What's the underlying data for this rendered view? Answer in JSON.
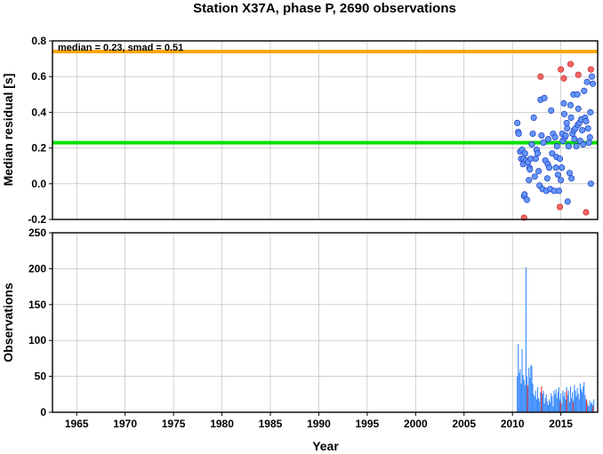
{
  "chart_data": [
    {
      "type": "scatter",
      "title": "Station X37A, phase P, 2690 observations",
      "xlabel": "",
      "ylabel": "Median residual [s]",
      "xlim": [
        1962.5,
        2018.8
      ],
      "ylim": [
        -0.2,
        0.8
      ],
      "xticks": [
        "1965",
        "1970",
        "1975",
        "1980",
        "1985",
        "1990",
        "1995",
        "2000",
        "2005",
        "2010",
        "2015"
      ],
      "yticks": [
        "-0.2",
        "0.0",
        "0.2",
        "0.4",
        "0.6",
        "0.8"
      ],
      "grid": true,
      "annotation": "median = 0.23, smad = 0.51",
      "reference_lines": [
        {
          "y": 0.23,
          "color": "#00e000"
        },
        {
          "y": 0.74,
          "color": "#ffa500"
        }
      ],
      "colors": {
        "normal": "#6496ff",
        "outlier": "#ff6464",
        "edge": "#1e3cb4",
        "outlier_edge": "#b42828"
      },
      "points": [
        [
          2010.5,
          0.34
        ],
        [
          2010.6,
          0.29
        ],
        [
          2010.65,
          0.28
        ],
        [
          2010.8,
          0.18
        ],
        [
          2010.9,
          0.14
        ],
        [
          2011.0,
          0.19
        ],
        [
          2011.1,
          0.11
        ],
        [
          2011.15,
          0.14
        ],
        [
          2011.2,
          -0.07
        ],
        [
          2011.25,
          -0.06
        ],
        [
          2011.3,
          0.17
        ],
        [
          2011.4,
          0.13
        ],
        [
          2011.5,
          -0.09
        ],
        [
          2011.6,
          0.12
        ],
        [
          2011.7,
          0.02
        ],
        [
          2011.75,
          0.09
        ],
        [
          2011.8,
          0.08
        ],
        [
          2011.9,
          0.14
        ],
        [
          2012.0,
          0.22
        ],
        [
          2012.1,
          0.28
        ],
        [
          2012.2,
          0.37
        ],
        [
          2012.3,
          0.04
        ],
        [
          2012.4,
          0.14
        ],
        [
          2012.5,
          0.19
        ],
        [
          2012.6,
          0.17
        ],
        [
          2012.7,
          0.07
        ],
        [
          2012.8,
          -0.01
        ],
        [
          2012.9,
          0.47
        ],
        [
          2013.0,
          0.27
        ],
        [
          2013.1,
          -0.03
        ],
        [
          2013.2,
          0.23
        ],
        [
          2013.3,
          0.48
        ],
        [
          2013.4,
          0.13
        ],
        [
          2013.5,
          -0.04
        ],
        [
          2013.6,
          0.03
        ],
        [
          2013.65,
          0.11
        ],
        [
          2013.7,
          0.25
        ],
        [
          2013.8,
          0.09
        ],
        [
          2013.9,
          -0.03
        ],
        [
          2014.0,
          0.41
        ],
        [
          2014.1,
          0.17
        ],
        [
          2014.2,
          0.28
        ],
        [
          2014.3,
          -0.04
        ],
        [
          2014.4,
          0.26
        ],
        [
          2014.5,
          0.09
        ],
        [
          2014.55,
          0.15
        ],
        [
          2014.6,
          0.21
        ],
        [
          2014.7,
          0.05
        ],
        [
          2014.8,
          -0.04
        ],
        [
          2014.9,
          0.14
        ],
        [
          2015.0,
          0.02
        ],
        [
          2015.1,
          0.09
        ],
        [
          2015.15,
          0.28
        ],
        [
          2015.2,
          0.24
        ],
        [
          2015.3,
          0.45
        ],
        [
          2015.35,
          0.39
        ],
        [
          2015.4,
          0.26
        ],
        [
          2015.5,
          0.27
        ],
        [
          2015.6,
          0.34
        ],
        [
          2015.65,
          0.31
        ],
        [
          2015.7,
          -0.1
        ],
        [
          2015.8,
          0.21
        ],
        [
          2015.9,
          0.06
        ],
        [
          2016.0,
          0.44
        ],
        [
          2016.05,
          0.37
        ],
        [
          2016.1,
          0.03
        ],
        [
          2016.2,
          0.28
        ],
        [
          2016.3,
          0.5
        ],
        [
          2016.35,
          0.3
        ],
        [
          2016.4,
          0.25
        ],
        [
          2016.5,
          0.31
        ],
        [
          2016.6,
          0.21
        ],
        [
          2016.7,
          0.5
        ],
        [
          2016.75,
          0.33
        ],
        [
          2016.8,
          0.42
        ],
        [
          2016.9,
          0.34
        ],
        [
          2017.0,
          0.24
        ],
        [
          2017.1,
          0.36
        ],
        [
          2017.2,
          0.3
        ],
        [
          2017.3,
          0.22
        ],
        [
          2017.4,
          0.52
        ],
        [
          2017.5,
          0.37
        ],
        [
          2017.6,
          0.35
        ],
        [
          2017.7,
          0.57
        ],
        [
          2017.8,
          0.31
        ],
        [
          2017.9,
          0.23
        ],
        [
          2018.0,
          0.26
        ],
        [
          2018.05,
          0.4
        ],
        [
          2018.1,
          0.0
        ],
        [
          2018.2,
          0.6
        ],
        [
          2018.3,
          0.56
        ]
      ],
      "outliers": [
        [
          2011.2,
          -0.19
        ],
        [
          2012.9,
          0.6
        ],
        [
          2014.9,
          -0.13
        ],
        [
          2015.0,
          0.64
        ],
        [
          2015.3,
          0.59
        ],
        [
          2016.0,
          0.67
        ],
        [
          2016.8,
          0.61
        ],
        [
          2017.6,
          -0.16
        ],
        [
          2018.1,
          0.64
        ]
      ]
    },
    {
      "type": "bar",
      "title": "",
      "xlabel": "Year",
      "ylabel": "Observations",
      "xlim": [
        1962.5,
        2018.8
      ],
      "ylim": [
        0,
        250
      ],
      "xticks": [
        "1965",
        "1970",
        "1975",
        "1980",
        "1985",
        "1990",
        "1995",
        "2000",
        "2005",
        "2010",
        "2015"
      ],
      "yticks": [
        "0",
        "50",
        "100",
        "150",
        "200",
        "250"
      ],
      "grid": true,
      "colors": {
        "normal": "#3c8cff",
        "outlier": "#e03030"
      },
      "bars": [
        [
          2010.5,
          50
        ],
        [
          2010.6,
          95
        ],
        [
          2010.7,
          55
        ],
        [
          2010.8,
          60
        ],
        [
          2010.9,
          40
        ],
        [
          2011.0,
          88
        ],
        [
          2011.1,
          52
        ],
        [
          2011.2,
          45
        ],
        [
          2011.3,
          38
        ],
        [
          2011.4,
          202
        ],
        [
          2011.5,
          50
        ],
        [
          2011.6,
          35
        ],
        [
          2011.7,
          62
        ],
        [
          2011.8,
          48
        ],
        [
          2011.9,
          66
        ],
        [
          2012.0,
          64
        ],
        [
          2012.1,
          40
        ],
        [
          2012.2,
          25
        ],
        [
          2012.3,
          22
        ],
        [
          2012.4,
          30
        ],
        [
          2012.5,
          18
        ],
        [
          2012.6,
          35
        ],
        [
          2012.7,
          20
        ],
        [
          2012.8,
          15
        ],
        [
          2012.9,
          28
        ],
        [
          2013.0,
          22
        ],
        [
          2013.1,
          26
        ],
        [
          2013.2,
          30
        ],
        [
          2013.3,
          12
        ],
        [
          2013.4,
          20
        ],
        [
          2013.5,
          25
        ],
        [
          2013.6,
          15
        ],
        [
          2013.7,
          10
        ],
        [
          2013.8,
          18
        ],
        [
          2013.9,
          14
        ],
        [
          2014.0,
          26
        ],
        [
          2014.1,
          22
        ],
        [
          2014.2,
          8
        ],
        [
          2014.3,
          30
        ],
        [
          2014.4,
          25
        ],
        [
          2014.5,
          32
        ],
        [
          2014.6,
          20
        ],
        [
          2014.7,
          28
        ],
        [
          2014.8,
          35
        ],
        [
          2014.9,
          18
        ],
        [
          2015.0,
          26
        ],
        [
          2015.1,
          12
        ],
        [
          2015.2,
          30
        ],
        [
          2015.3,
          22
        ],
        [
          2015.4,
          28
        ],
        [
          2015.5,
          18
        ],
        [
          2015.6,
          35
        ],
        [
          2015.7,
          24
        ],
        [
          2015.8,
          30
        ],
        [
          2015.9,
          14
        ],
        [
          2016.0,
          36
        ],
        [
          2016.1,
          20
        ],
        [
          2016.2,
          28
        ],
        [
          2016.3,
          16
        ],
        [
          2016.4,
          38
        ],
        [
          2016.5,
          30
        ],
        [
          2016.6,
          22
        ],
        [
          2016.7,
          34
        ],
        [
          2016.8,
          26
        ],
        [
          2016.9,
          18
        ],
        [
          2017.0,
          40
        ],
        [
          2017.1,
          32
        ],
        [
          2017.2,
          28
        ],
        [
          2017.3,
          36
        ],
        [
          2017.4,
          42
        ],
        [
          2017.5,
          24
        ],
        [
          2017.6,
          18
        ],
        [
          2017.7,
          14
        ],
        [
          2017.8,
          10
        ],
        [
          2017.9,
          8
        ],
        [
          2018.0,
          16
        ],
        [
          2018.1,
          12
        ],
        [
          2018.2,
          14
        ],
        [
          2018.3,
          10
        ],
        [
          2018.4,
          18
        ]
      ],
      "outlier_bars": [
        [
          2011.55,
          38
        ],
        [
          2013.0,
          36
        ],
        [
          2014.95,
          14
        ],
        [
          2015.6,
          30
        ],
        [
          2016.25,
          14
        ],
        [
          2017.65,
          18
        ],
        [
          2018.3,
          8
        ]
      ]
    }
  ]
}
